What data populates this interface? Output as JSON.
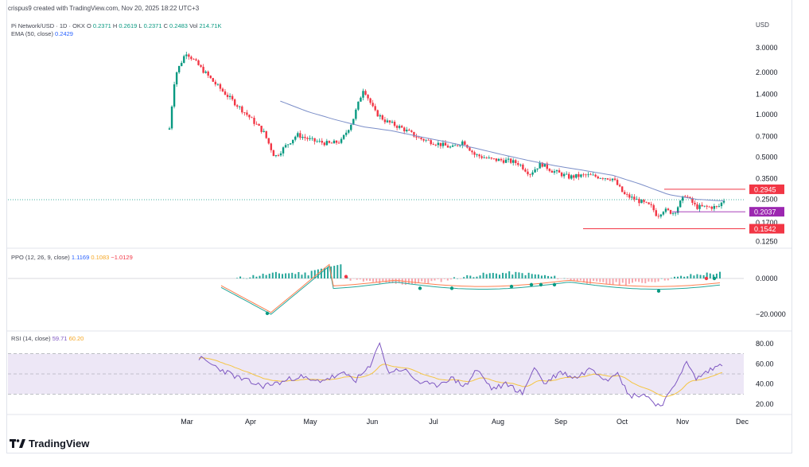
{
  "header": {
    "created_by": "crispus9 created with TradingView.com, Nov 20, 2025 18:22 UTC+3"
  },
  "currency": "USD",
  "main_legend": {
    "symbol": "Pi Network/USD · 1D · OKX",
    "o_label": "O",
    "o": "0.2371",
    "h_label": "H",
    "h": "0.2619",
    "l_label": "L",
    "l": "0.2371",
    "c_label": "C",
    "c": "0.2483",
    "vol_label": "Vol",
    "vol": "214.71K"
  },
  "ema_legend": {
    "label": "EMA (50, close)",
    "value": "0.2429"
  },
  "ppo_legend": {
    "label": "PPO (12, 26, 9, close)",
    "v1": "1.1169",
    "v2": "0.1083",
    "v3": "−1.0129"
  },
  "rsi_legend": {
    "label": "RSI (14, close)",
    "v1": "59.71",
    "v2": "60.20"
  },
  "footer": {
    "brand": "TradingView"
  },
  "colors": {
    "up": "#089981",
    "down": "#f23645",
    "ema": "#7b8ec8",
    "rsi": "#7e57c2",
    "rsi_ma": "#f5c542",
    "ppo_fast": "#26a69a",
    "ppo_slow": "#ff7f50",
    "box_red": "#f23645",
    "box_purple": "#9c27b0"
  },
  "chart_data": {
    "type": "candlestick",
    "x_labels": [
      "Mar",
      "Apr",
      "May",
      "Jun",
      "Jul",
      "Aug",
      "Sep",
      "Oct",
      "Nov",
      "Dec"
    ],
    "y_scale": "log",
    "y_ticks": [
      "3.0000",
      "2.0000",
      "1.4000",
      "1.0000",
      "0.7000",
      "0.5000",
      "0.3500",
      "0.2500",
      "0.1700",
      "0.1250"
    ],
    "y_tick_values": [
      3.0,
      2.0,
      1.4,
      1.0,
      0.7,
      0.5,
      0.35,
      0.25,
      0.17,
      0.125
    ],
    "price_labels": [
      {
        "text": "0.2945",
        "value": 0.2945,
        "color": "#f23645"
      },
      {
        "text": "0.2037",
        "value": 0.2037,
        "color": "#9c27b0"
      },
      {
        "text": "0.1542",
        "value": 0.1542,
        "color": "#f23645"
      }
    ],
    "close_path": [
      [
        0.0,
        0.8
      ],
      [
        0.01,
        1.9
      ],
      [
        0.03,
        2.8
      ],
      [
        0.05,
        2.3
      ],
      [
        0.08,
        1.7
      ],
      [
        0.11,
        1.3
      ],
      [
        0.14,
        1.0
      ],
      [
        0.17,
        0.75
      ],
      [
        0.19,
        0.5
      ],
      [
        0.21,
        0.6
      ],
      [
        0.23,
        0.72
      ],
      [
        0.26,
        0.65
      ],
      [
        0.29,
        0.62
      ],
      [
        0.31,
        0.65
      ],
      [
        0.33,
        0.9
      ],
      [
        0.35,
        1.55
      ],
      [
        0.37,
        1.05
      ],
      [
        0.39,
        0.9
      ],
      [
        0.42,
        0.8
      ],
      [
        0.45,
        0.68
      ],
      [
        0.48,
        0.63
      ],
      [
        0.51,
        0.58
      ],
      [
        0.53,
        0.65
      ],
      [
        0.55,
        0.52
      ],
      [
        0.58,
        0.48
      ],
      [
        0.61,
        0.47
      ],
      [
        0.63,
        0.45
      ],
      [
        0.65,
        0.38
      ],
      [
        0.67,
        0.45
      ],
      [
        0.69,
        0.4
      ],
      [
        0.72,
        0.36
      ],
      [
        0.75,
        0.37
      ],
      [
        0.78,
        0.36
      ],
      [
        0.8,
        0.35
      ],
      [
        0.82,
        0.27
      ],
      [
        0.85,
        0.24
      ],
      [
        0.87,
        0.22
      ],
      [
        0.88,
        0.19
      ],
      [
        0.89,
        0.21
      ],
      [
        0.91,
        0.2
      ],
      [
        0.93,
        0.27
      ],
      [
        0.95,
        0.22
      ],
      [
        0.97,
        0.22
      ],
      [
        0.99,
        0.22
      ],
      [
        1.0,
        0.248
      ]
    ],
    "ema_path": [
      [
        0.2,
        1.25
      ],
      [
        0.25,
        1.05
      ],
      [
        0.3,
        0.92
      ],
      [
        0.35,
        0.82
      ],
      [
        0.4,
        0.77
      ],
      [
        0.45,
        0.7
      ],
      [
        0.5,
        0.64
      ],
      [
        0.55,
        0.58
      ],
      [
        0.6,
        0.52
      ],
      [
        0.65,
        0.47
      ],
      [
        0.7,
        0.43
      ],
      [
        0.75,
        0.4
      ],
      [
        0.8,
        0.37
      ],
      [
        0.85,
        0.32
      ],
      [
        0.9,
        0.27
      ],
      [
        0.95,
        0.25
      ],
      [
        1.0,
        0.243
      ]
    ],
    "ppo": {
      "y_ticks": [
        "0.0000",
        "−20.0000"
      ],
      "y_tick_values": [
        0,
        -20
      ]
    },
    "rsi": {
      "y_ticks": [
        "80.00",
        "60.00",
        "40.00",
        "20.00"
      ],
      "y_tick_values": [
        80,
        60,
        40,
        20
      ],
      "band": [
        30,
        70
      ],
      "path": [
        [
          0.0,
          66
        ],
        [
          0.04,
          55
        ],
        [
          0.08,
          45
        ],
        [
          0.12,
          38
        ],
        [
          0.16,
          42
        ],
        [
          0.19,
          48
        ],
        [
          0.22,
          42
        ],
        [
          0.25,
          46
        ],
        [
          0.28,
          50
        ],
        [
          0.3,
          44
        ],
        [
          0.33,
          58
        ],
        [
          0.345,
          84
        ],
        [
          0.36,
          52
        ],
        [
          0.39,
          55
        ],
        [
          0.42,
          42
        ],
        [
          0.45,
          38
        ],
        [
          0.48,
          46
        ],
        [
          0.51,
          38
        ],
        [
          0.53,
          55
        ],
        [
          0.56,
          35
        ],
        [
          0.59,
          40
        ],
        [
          0.62,
          30
        ],
        [
          0.64,
          58
        ],
        [
          0.66,
          40
        ],
        [
          0.69,
          52
        ],
        [
          0.72,
          46
        ],
        [
          0.75,
          56
        ],
        [
          0.78,
          44
        ],
        [
          0.8,
          54
        ],
        [
          0.82,
          28
        ],
        [
          0.85,
          30
        ],
        [
          0.88,
          18
        ],
        [
          0.9,
          30
        ],
        [
          0.93,
          62
        ],
        [
          0.95,
          45
        ],
        [
          0.97,
          52
        ],
        [
          1.0,
          60
        ]
      ]
    }
  }
}
